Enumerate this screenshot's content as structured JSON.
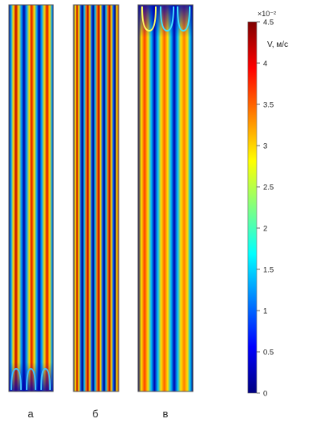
{
  "panels": [
    {
      "id": "a",
      "label": "а"
    },
    {
      "id": "b",
      "label": "б"
    },
    {
      "id": "c",
      "label": "в"
    }
  ],
  "colorbar": {
    "exponent_label": "×10⁻²",
    "quantity_label": "V, м/с",
    "min": 0,
    "max": 4.5,
    "ticks": [
      "4.5",
      "4",
      "3.5",
      "3",
      "2.5",
      "2",
      "1.5",
      "1",
      "0.5",
      "0"
    ],
    "colormap": [
      "#00007f",
      "#0000ff",
      "#0080ff",
      "#00ffff",
      "#80ff80",
      "#ffff00",
      "#ff8000",
      "#ff0000",
      "#7f0000"
    ]
  }
}
